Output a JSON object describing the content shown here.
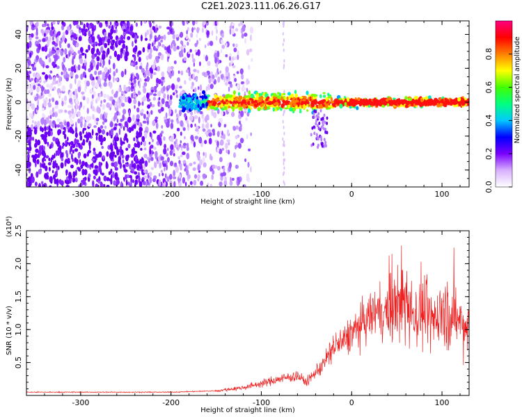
{
  "title": "C2E1.2023.111.06.26.G17",
  "chart_data": [
    {
      "type": "heatmap",
      "xlabel": "Height of straight line (km)",
      "ylabel": "Frequency (Hz)",
      "xlim": [
        -360,
        130
      ],
      "ylim": [
        -50,
        48
      ],
      "xticks": [
        -300,
        -200,
        -100,
        0,
        100
      ],
      "yticks": [
        -40,
        -20,
        0,
        20,
        40
      ],
      "colorbar": {
        "label": "Normalized spectral amplitude",
        "range": [
          0,
          1
        ],
        "ticks": [
          "0.0",
          "0.2",
          "0.4",
          "0.6",
          "0.8"
        ],
        "colors": [
          "#ffffff",
          "#d8b0ff",
          "#7b00ff",
          "#0000ff",
          "#00c8ff",
          "#00ff80",
          "#40ff00",
          "#ffff00",
          "#ff8000",
          "#ff0000",
          "#ff0080"
        ]
      },
      "features": {
        "noise_region_x": [
          -360,
          -130
        ],
        "signal_trace": {
          "x_start": -190,
          "x_end": 130,
          "frequency_hz": 0
        }
      }
    },
    {
      "type": "line",
      "xlabel": "Height of straight line (km)",
      "ylabel": "SNR (10 * v/v)",
      "scale_label": "(x10⁴)",
      "xlim": [
        -360,
        130
      ],
      "ylim": [
        0,
        2.5
      ],
      "xticks": [
        -300,
        -200,
        -100,
        0,
        100
      ],
      "yticks": [
        "0.5",
        "1.0",
        "1.5",
        "2.0",
        "2.5"
      ],
      "color": "#ee2020",
      "series": [
        {
          "x": [
            -360,
            -300,
            -200,
            -150,
            -120,
            -100,
            -80,
            -60,
            -50,
            -40,
            -30,
            -20,
            -10,
            0,
            10,
            20,
            30,
            40,
            50,
            60,
            70,
            80,
            90,
            100,
            110,
            120,
            130
          ],
          "values": [
            0.05,
            0.05,
            0.05,
            0.07,
            0.12,
            0.18,
            0.25,
            0.3,
            0.2,
            0.35,
            0.5,
            0.75,
            0.8,
            0.95,
            1.05,
            1.2,
            1.3,
            1.25,
            1.35,
            1.4,
            1.2,
            1.25,
            1.1,
            1.3,
            1.2,
            1.1,
            1.0
          ]
        }
      ]
    }
  ]
}
